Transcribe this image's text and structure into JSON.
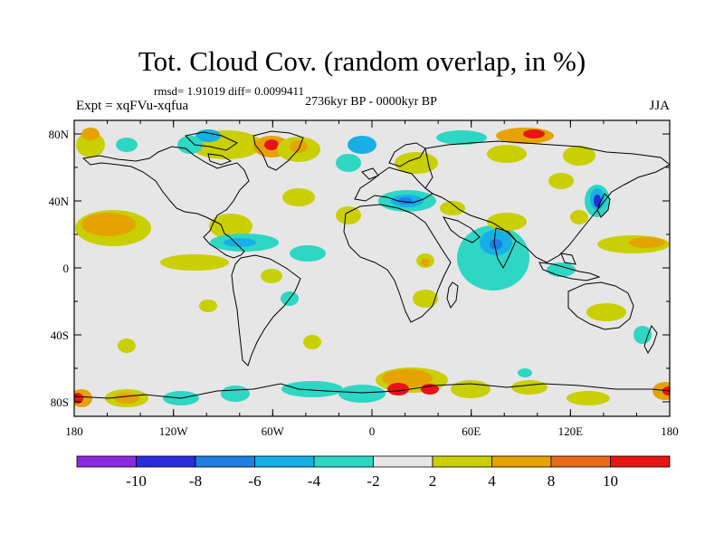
{
  "title": "Tot. Cloud Cov. (random overlap, in %)",
  "stats": "rmsd= 1.91019 diff= 0.0099411",
  "expt": "Expt = xqFVu-xqfua",
  "period": "2736kyr BP - 0000kyr BP",
  "season": "JJA",
  "axes": {
    "lon_ticks": [
      "180",
      "120W",
      "60W",
      "0",
      "60E",
      "120E",
      "180"
    ],
    "lat_ticks": [
      "80N",
      "40N",
      "0",
      "40S",
      "80S"
    ]
  },
  "colorbar": {
    "labels": [
      "-10",
      "-8",
      "-6",
      "-4",
      "-2",
      "2",
      "4",
      "8",
      "10"
    ],
    "colors": [
      "#8a2be2",
      "#2b2bd9",
      "#1f7fe0",
      "#16b0e6",
      "#2ed6c4",
      "#e6e6e6",
      "#c9cf00",
      "#e6a300",
      "#e86a1a",
      "#e81414"
    ]
  },
  "colors": {
    "background": "#e6e6e6",
    "coast": "#000000"
  }
}
